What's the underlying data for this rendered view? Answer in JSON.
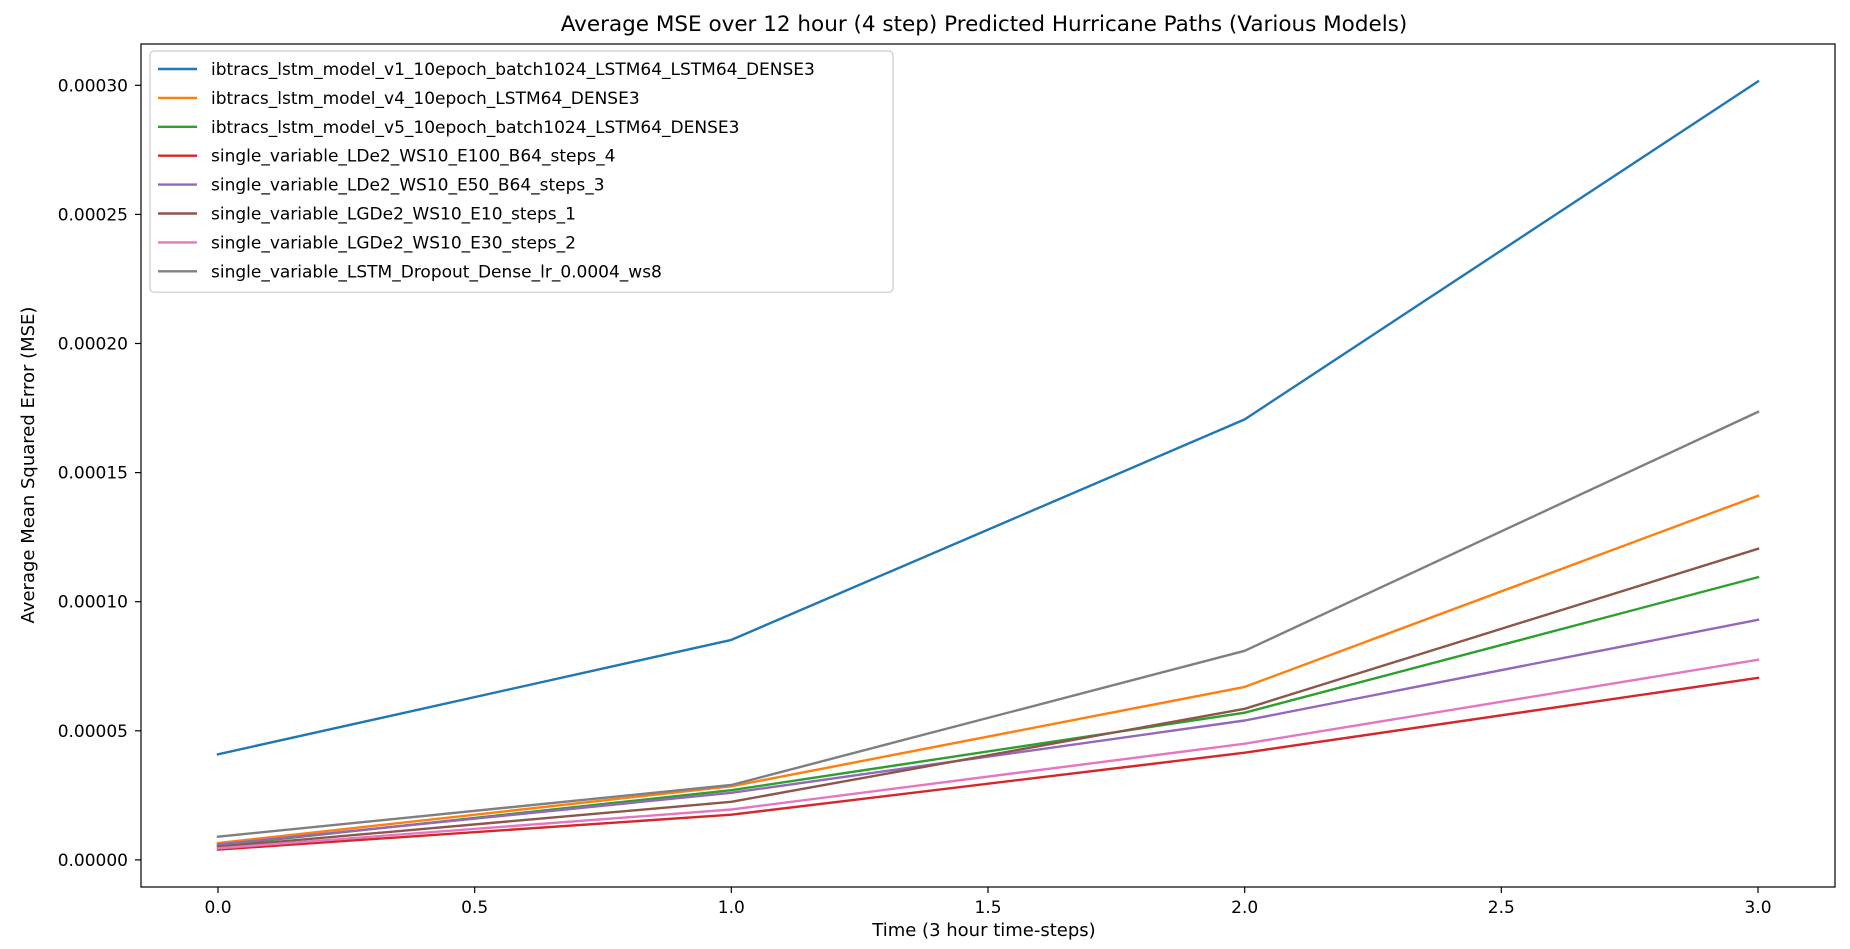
{
  "chart_data": {
    "type": "line",
    "title": "Average MSE over 12 hour (4 step) Predicted Hurricane Paths (Various Models)",
    "xlabel": "Time (3 hour time-steps)",
    "ylabel": "Average Mean Squared Error (MSE)",
    "xlim": [
      -0.15,
      3.15
    ],
    "ylim": [
      -1.05e-05,
      0.000316
    ],
    "x_ticks": [
      0.0,
      0.5,
      1.0,
      1.5,
      2.0,
      2.5,
      3.0
    ],
    "x_tick_labels": [
      "0.0",
      "0.5",
      "1.0",
      "1.5",
      "2.0",
      "2.5",
      "3.0"
    ],
    "y_ticks": [
      0.0,
      5e-05,
      0.0001,
      0.00015,
      0.0002,
      0.00025,
      0.0003
    ],
    "y_tick_labels": [
      "0.00000",
      "0.00005",
      "0.00010",
      "0.00015",
      "0.00020",
      "0.00025",
      "0.00030"
    ],
    "grid": false,
    "legend_position": "top-left",
    "x": [
      0,
      1,
      2,
      3
    ],
    "series": [
      {
        "name": "ibtracs_lstm_model_v1_10epoch_batch1024_LSTM64_LSTM64_DENSE3",
        "color": "#1f77b4",
        "values": [
          4.09e-05,
          8.52e-05,
          0.0001706,
          0.0003015
        ]
      },
      {
        "name": "ibtracs_lstm_model_v4_10epoch_LSTM64_DENSE3",
        "color": "#ff7f0e",
        "values": [
          6.5e-06,
          2.85e-05,
          6.7e-05,
          0.000141
        ]
      },
      {
        "name": "ibtracs_lstm_model_v5_10epoch_batch1024_LSTM64_DENSE3",
        "color": "#2ca02c",
        "values": [
          5.5e-06,
          2.7e-05,
          5.7e-05,
          0.0001095
        ]
      },
      {
        "name": "single_variable_LDe2_WS10_E100_B64_steps_4",
        "color": "#d62728",
        "values": [
          4e-06,
          1.75e-05,
          4.15e-05,
          7.05e-05
        ]
      },
      {
        "name": "single_variable_LDe2_WS10_E50_B64_steps_3",
        "color": "#9467bd",
        "values": [
          6e-06,
          2.6e-05,
          5.4e-05,
          9.3e-05
        ]
      },
      {
        "name": "single_variable_LGDe2_WS10_E10_steps_1",
        "color": "#8c564b",
        "values": [
          5e-06,
          2.25e-05,
          5.85e-05,
          0.0001205
        ]
      },
      {
        "name": "single_variable_LGDe2_WS10_E30_steps_2",
        "color": "#e377c2",
        "values": [
          4.5e-06,
          1.95e-05,
          4.5e-05,
          7.75e-05
        ]
      },
      {
        "name": "single_variable_LSTM_Dropout_Dense_lr_0.0004_ws8",
        "color": "#7f7f7f",
        "values": [
          9e-06,
          2.9e-05,
          8.1e-05,
          0.0001735
        ]
      }
    ]
  }
}
